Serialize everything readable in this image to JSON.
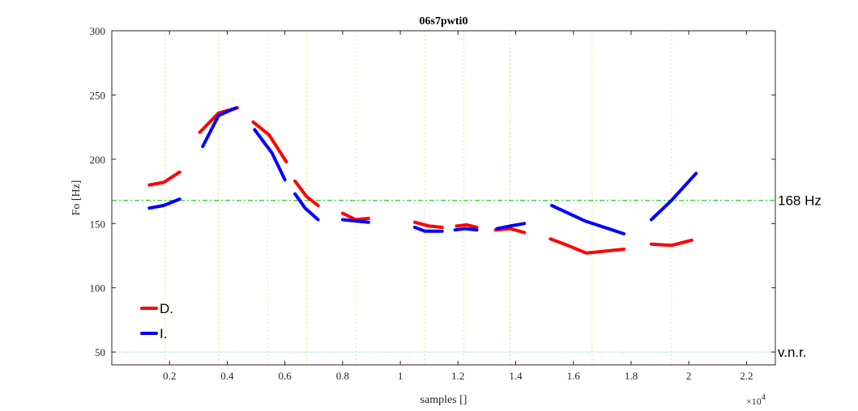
{
  "chart_data": {
    "type": "line",
    "title": "06s7pwti0",
    "xlabel": "samples []",
    "ylabel": "Fo [Hz]",
    "x_exponent_label": "×10",
    "x_exponent_power": "4",
    "xlim": [
      0,
      2.3
    ],
    "ylim": [
      40,
      300
    ],
    "x_ticks": [
      0.2,
      0.4,
      0.6,
      0.8,
      1,
      1.2,
      1.4,
      1.6,
      1.8,
      2,
      2.2
    ],
    "x_tick_labels": [
      "0.2",
      "0.4",
      "0.6",
      "0.8",
      "1",
      "1.2",
      "1.4",
      "1.6",
      "1.8",
      "2",
      "2.2"
    ],
    "y_ticks": [
      50,
      100,
      150,
      200,
      250,
      300
    ],
    "y_tick_labels": [
      "50",
      "100",
      "150",
      "200",
      "250",
      "300"
    ],
    "grid": false,
    "vertical_guides": [
      0.185,
      0.37,
      0.54,
      0.675,
      0.845,
      1.085,
      1.22,
      1.38,
      1.665,
      1.94
    ],
    "reference_lines": [
      {
        "y": 168,
        "label": "168 Hz",
        "color": "#00cc00",
        "style": "dashdot"
      },
      {
        "y": 50,
        "label": "v.n.r.",
        "color": "#66cccc",
        "style": "dotted"
      }
    ],
    "legend": {
      "position": "bottom-left",
      "entries": [
        "D.",
        "I."
      ]
    },
    "series": [
      {
        "name": "D.",
        "color": "#ff0000",
        "segments": [
          [
            [
              0.13,
              180
            ],
            [
              0.18,
              182
            ],
            [
              0.235,
              190
            ]
          ],
          [
            [
              0.305,
              221
            ],
            [
              0.37,
              236
            ],
            [
              0.435,
              240
            ]
          ],
          [
            [
              0.49,
              229
            ],
            [
              0.545,
              219
            ],
            [
              0.605,
              198
            ]
          ],
          [
            [
              0.635,
              183
            ],
            [
              0.675,
              171
            ],
            [
              0.715,
              164
            ]
          ],
          [
            [
              0.8,
              158
            ],
            [
              0.845,
              153
            ],
            [
              0.89,
              154
            ]
          ],
          [
            [
              1.05,
              151
            ],
            [
              1.1,
              148
            ],
            [
              1.145,
              147
            ]
          ],
          [
            [
              1.195,
              148
            ],
            [
              1.23,
              149
            ],
            [
              1.265,
              147
            ]
          ],
          [
            [
              1.33,
              145
            ],
            [
              1.38,
              146
            ],
            [
              1.43,
              143
            ]
          ],
          [
            [
              1.52,
              138
            ],
            [
              1.58,
              133
            ],
            [
              1.645,
              127
            ],
            [
              1.775,
              130
            ]
          ],
          [
            [
              1.87,
              134
            ],
            [
              1.94,
              133
            ],
            [
              2.01,
              137
            ]
          ]
        ]
      },
      {
        "name": "I.",
        "color": "#0000ff",
        "segments": [
          [
            [
              0.13,
              162
            ],
            [
              0.18,
              164
            ],
            [
              0.235,
              169
            ]
          ],
          [
            [
              0.315,
              210
            ],
            [
              0.37,
              234
            ],
            [
              0.43,
              240
            ]
          ],
          [
            [
              0.495,
              223
            ],
            [
              0.555,
              205
            ],
            [
              0.6,
              184
            ]
          ],
          [
            [
              0.635,
              173
            ],
            [
              0.67,
              162
            ],
            [
              0.715,
              153
            ]
          ],
          [
            [
              0.8,
              153
            ],
            [
              0.845,
              152
            ],
            [
              0.89,
              151
            ]
          ],
          [
            [
              1.05,
              147
            ],
            [
              1.085,
              144
            ],
            [
              1.145,
              144
            ]
          ],
          [
            [
              1.19,
              145
            ],
            [
              1.225,
              146
            ],
            [
              1.265,
              145
            ]
          ],
          [
            [
              1.335,
              146
            ],
            [
              1.38,
              148
            ],
            [
              1.43,
              150
            ]
          ],
          [
            [
              1.525,
              164
            ],
            [
              1.64,
              152
            ],
            [
              1.775,
              142
            ]
          ],
          [
            [
              1.87,
              153
            ],
            [
              1.94,
              168
            ],
            [
              2.025,
              189
            ]
          ]
        ]
      }
    ]
  }
}
